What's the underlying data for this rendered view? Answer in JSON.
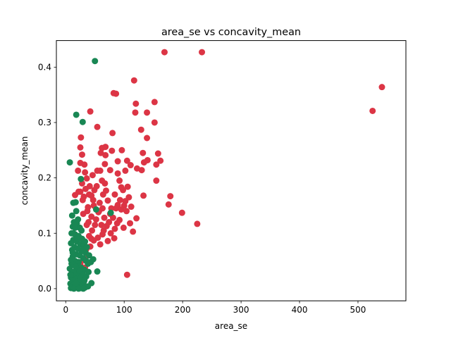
{
  "chart_data": {
    "type": "scatter",
    "title": "area_se vs concavity_mean",
    "xlabel": "area_se",
    "ylabel": "concavity_mean",
    "xlim": [
      -16,
      582
    ],
    "ylim": [
      -0.022,
      0.448
    ],
    "xticks": [
      0,
      100,
      200,
      300,
      400,
      500
    ],
    "yticks": [
      0.0,
      0.1,
      0.2,
      0.3,
      0.4
    ],
    "xtick_labels": [
      "0",
      "100",
      "200",
      "300",
      "400",
      "500"
    ],
    "ytick_labels": [
      "0.0",
      "0.1",
      "0.2",
      "0.3",
      "0.4"
    ],
    "grid": false,
    "legend": "none",
    "series": [
      {
        "color": "#dc3545",
        "points": [
          [
            169,
            0.427
          ],
          [
            233,
            0.427
          ],
          [
            117,
            0.376
          ],
          [
            541,
            0.364
          ],
          [
            525,
            0.321
          ],
          [
            82,
            0.353
          ],
          [
            86,
            0.352
          ],
          [
            152,
            0.337
          ],
          [
            120,
            0.334
          ],
          [
            139,
            0.318
          ],
          [
            119,
            0.318
          ],
          [
            42,
            0.32
          ],
          [
            152,
            0.3
          ],
          [
            54,
            0.292
          ],
          [
            129,
            0.287
          ],
          [
            80,
            0.281
          ],
          [
            139,
            0.272
          ],
          [
            26,
            0.273
          ],
          [
            68,
            0.256
          ],
          [
            62,
            0.254
          ],
          [
            25,
            0.255
          ],
          [
            79,
            0.249
          ],
          [
            96,
            0.25
          ],
          [
            158,
            0.244
          ],
          [
            132,
            0.245
          ],
          [
            60,
            0.245
          ],
          [
            28,
            0.242
          ],
          [
            68,
            0.241
          ],
          [
            162,
            0.231
          ],
          [
            140,
            0.232
          ],
          [
            105,
            0.231
          ],
          [
            89,
            0.23
          ],
          [
            25,
            0.227
          ],
          [
            134,
            0.228
          ],
          [
            155,
            0.224
          ],
          [
            32,
            0.224
          ],
          [
            67,
            0.225
          ],
          [
            76,
            0.214
          ],
          [
            54,
            0.213
          ],
          [
            111,
            0.223
          ],
          [
            122,
            0.217
          ],
          [
            102,
            0.213
          ],
          [
            59,
            0.213
          ],
          [
            21,
            0.213
          ],
          [
            33,
            0.21
          ],
          [
            46,
            0.205
          ],
          [
            130,
            0.214
          ],
          [
            89,
            0.208
          ],
          [
            36,
            0.199
          ],
          [
            155,
            0.195
          ],
          [
            62,
            0.195
          ],
          [
            92,
            0.195
          ],
          [
            28,
            0.19
          ],
          [
            67,
            0.19
          ],
          [
            41,
            0.185
          ],
          [
            95,
            0.183
          ],
          [
            106,
            0.184
          ],
          [
            34,
            0.18
          ],
          [
            49,
            0.178
          ],
          [
            98,
            0.178
          ],
          [
            69,
            0.177
          ],
          [
            25,
            0.175
          ],
          [
            16,
            0.169
          ],
          [
            133,
            0.168
          ],
          [
            179,
            0.167
          ],
          [
            84,
            0.17
          ],
          [
            64,
            0.17
          ],
          [
            44,
            0.168
          ],
          [
            31,
            0.166
          ],
          [
            108,
            0.165
          ],
          [
            176,
            0.152
          ],
          [
            102,
            0.158
          ],
          [
            72,
            0.159
          ],
          [
            58,
            0.155
          ],
          [
            89,
            0.151
          ],
          [
            48,
            0.15
          ],
          [
            100,
            0.15
          ],
          [
            112,
            0.148
          ],
          [
            38,
            0.147
          ],
          [
            63,
            0.145
          ],
          [
            78,
            0.145
          ],
          [
            95,
            0.143
          ],
          [
            199,
            0.137
          ],
          [
            56,
            0.138
          ],
          [
            76,
            0.135
          ],
          [
            44,
            0.13
          ],
          [
            66,
            0.128
          ],
          [
            121,
            0.127
          ],
          [
            92,
            0.124
          ],
          [
            39,
            0.12
          ],
          [
            88,
            0.118
          ],
          [
            225,
            0.117
          ],
          [
            110,
            0.118
          ],
          [
            50,
            0.115
          ],
          [
            70,
            0.113
          ],
          [
            99,
            0.11
          ],
          [
            84,
            0.108
          ],
          [
            115,
            0.103
          ],
          [
            77,
            0.1
          ],
          [
            63,
            0.098
          ],
          [
            40,
            0.095
          ],
          [
            55,
            0.092
          ],
          [
            72,
            0.086
          ],
          [
            83,
            0.091
          ],
          [
            48,
            0.087
          ],
          [
            59,
            0.08
          ],
          [
            42,
            0.076
          ],
          [
            35,
            0.071
          ],
          [
            28,
            0.068
          ],
          [
            38,
            0.06
          ],
          [
            30,
            0.052
          ],
          [
            25,
            0.045
          ],
          [
            33,
            0.038
          ],
          [
            27,
            0.032
          ],
          [
            105,
            0.025
          ],
          [
            22,
            0.175
          ],
          [
            30,
            0.135
          ],
          [
            36,
            0.115
          ],
          [
            24,
            0.11
          ],
          [
            45,
            0.105
          ],
          [
            52,
            0.125
          ],
          [
            57,
            0.14
          ],
          [
            61,
            0.115
          ],
          [
            65,
            0.105
          ],
          [
            74,
            0.12
          ],
          [
            81,
            0.128
          ],
          [
            86,
            0.145
          ],
          [
            93,
            0.16
          ],
          [
            104,
            0.14
          ],
          [
            47,
            0.16
          ],
          [
            40,
            0.17
          ],
          [
            53,
            0.185
          ],
          [
            29,
            0.16
          ],
          [
            37,
            0.14
          ],
          [
            44,
            0.09
          ]
        ]
      },
      {
        "color": "#198754",
        "points": [
          [
            50,
            0.411
          ],
          [
            18,
            0.314
          ],
          [
            29,
            0.301
          ],
          [
            7,
            0.228
          ],
          [
            26,
            0.198
          ],
          [
            13,
            0.155
          ],
          [
            17,
            0.156
          ],
          [
            11,
            0.132
          ],
          [
            18,
            0.14
          ],
          [
            52,
            0.143
          ],
          [
            77,
            0.137
          ],
          [
            14,
            0.12
          ],
          [
            19,
            0.118
          ],
          [
            12,
            0.112
          ],
          [
            24,
            0.11
          ],
          [
            10,
            0.1
          ],
          [
            16,
            0.098
          ],
          [
            22,
            0.095
          ],
          [
            28,
            0.09
          ],
          [
            13,
            0.088
          ],
          [
            19,
            0.085
          ],
          [
            9,
            0.082
          ],
          [
            25,
            0.08
          ],
          [
            31,
            0.078
          ],
          [
            15,
            0.075
          ],
          [
            21,
            0.072
          ],
          [
            11,
            0.07
          ],
          [
            27,
            0.068
          ],
          [
            34,
            0.065
          ],
          [
            18,
            0.062
          ],
          [
            24,
            0.06
          ],
          [
            12,
            0.058
          ],
          [
            30,
            0.055
          ],
          [
            9,
            0.052
          ],
          [
            16,
            0.05
          ],
          [
            22,
            0.048
          ],
          [
            38,
            0.045
          ],
          [
            14,
            0.043
          ],
          [
            20,
            0.04
          ],
          [
            26,
            0.038
          ],
          [
            7,
            0.036
          ],
          [
            32,
            0.034
          ],
          [
            17,
            0.032
          ],
          [
            54,
            0.031
          ],
          [
            11,
            0.03
          ],
          [
            23,
            0.028
          ],
          [
            29,
            0.026
          ],
          [
            15,
            0.024
          ],
          [
            35,
            0.022
          ],
          [
            9,
            0.02
          ],
          [
            19,
            0.018
          ],
          [
            25,
            0.016
          ],
          [
            13,
            0.014
          ],
          [
            31,
            0.012
          ],
          [
            44,
            0.01
          ],
          [
            8,
            0.009
          ],
          [
            17,
            0.008
          ],
          [
            23,
            0.006
          ],
          [
            11,
            0.005
          ],
          [
            28,
            0.004
          ],
          [
            15,
            0.003
          ],
          [
            20,
            0.002
          ],
          [
            9,
            0.001
          ],
          [
            26,
            0.001
          ],
          [
            33,
            0.002
          ],
          [
            38,
            0.004
          ],
          [
            14,
            0.0
          ],
          [
            22,
            0.0
          ],
          [
            30,
            0.0
          ],
          [
            18,
            0.01
          ],
          [
            12,
            0.065
          ],
          [
            27,
            0.105
          ],
          [
            33,
            0.085
          ],
          [
            21,
            0.125
          ],
          [
            36,
            0.075
          ],
          [
            40,
            0.06
          ],
          [
            43,
            0.048
          ],
          [
            47,
            0.053
          ],
          [
            24,
            0.033
          ],
          [
            16,
            0.11
          ],
          [
            10,
            0.045
          ],
          [
            8,
            0.025
          ],
          [
            13,
            0.1
          ],
          [
            20,
            0.09
          ],
          [
            29,
            0.07
          ],
          [
            35,
            0.05
          ],
          [
            39,
            0.03
          ],
          [
            26,
            0.02
          ],
          [
            32,
            0.015
          ],
          [
            17,
            0.04
          ]
        ]
      }
    ]
  }
}
